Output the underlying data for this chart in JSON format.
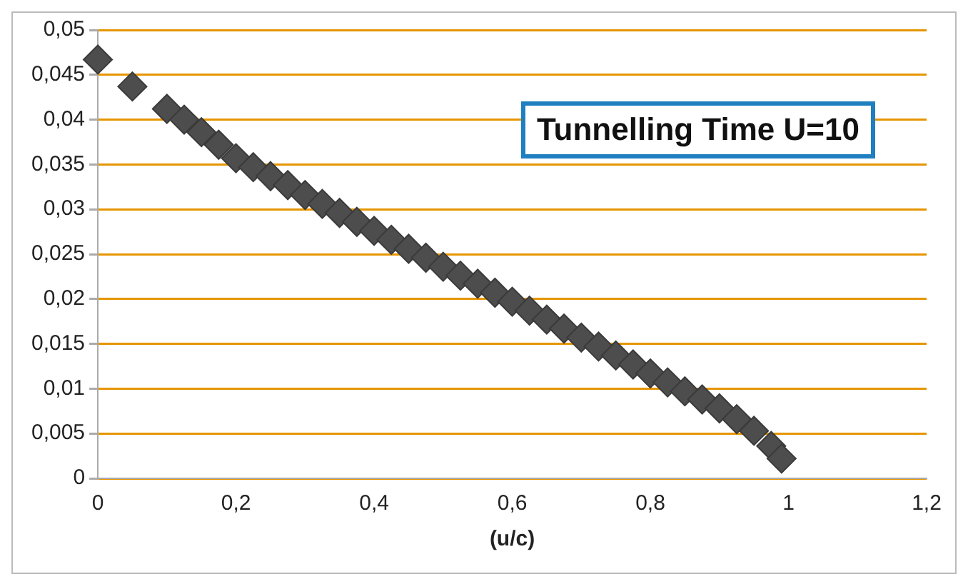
{
  "chart_data": {
    "type": "scatter",
    "title": "Tunnelling Time U=10",
    "xlabel": "(u/c)",
    "x": [
      0,
      0.05,
      0.1,
      0.125,
      0.15,
      0.175,
      0.2,
      0.225,
      0.25,
      0.275,
      0.3,
      0.325,
      0.35,
      0.375,
      0.4,
      0.425,
      0.45,
      0.475,
      0.5,
      0.525,
      0.55,
      0.575,
      0.6,
      0.625,
      0.65,
      0.675,
      0.7,
      0.725,
      0.75,
      0.775,
      0.8,
      0.825,
      0.85,
      0.875,
      0.9,
      0.925,
      0.95,
      0.975,
      0.99
    ],
    "series": [
      {
        "color": "#4d4d4d",
        "values": [
          0.0467,
          0.0437,
          0.0412,
          0.04,
          0.0386,
          0.0372,
          0.0357,
          0.0347,
          0.0337,
          0.0327,
          0.0316,
          0.0306,
          0.0296,
          0.0286,
          0.0276,
          0.0266,
          0.0256,
          0.0246,
          0.0236,
          0.0226,
          0.0217,
          0.0207,
          0.0197,
          0.0187,
          0.0177,
          0.0167,
          0.0157,
          0.0147,
          0.0137,
          0.0127,
          0.0117,
          0.0107,
          0.0097,
          0.0088,
          0.0078,
          0.0066,
          0.0053,
          0.0036,
          0.0022
        ]
      }
    ],
    "marker": "diamond",
    "grid": "y",
    "legend": false,
    "xlim": [
      0,
      1.2
    ],
    "xticks": [
      0,
      {
        "value": 0.2,
        "label": "0,2"
      },
      {
        "value": 0.4,
        "label": "0,4"
      },
      {
        "value": 0.6,
        "label": "0,6"
      },
      {
        "value": 0.8,
        "label": "0,8"
      },
      1,
      {
        "value": 1.2,
        "label": "1,2"
      }
    ],
    "ylim": [
      0,
      0.05
    ],
    "yticks": [
      0,
      {
        "value": 0.005,
        "label": "0,005"
      },
      {
        "value": 0.01,
        "label": "0,01"
      },
      {
        "value": 0.015,
        "label": "0,015"
      },
      {
        "value": 0.02,
        "label": "0,02"
      },
      {
        "value": 0.025,
        "label": "0,025"
      },
      {
        "value": 0.03,
        "label": "0,03"
      },
      {
        "value": 0.035,
        "label": "0,035"
      },
      {
        "value": 0.04,
        "label": "0,04"
      },
      {
        "value": 0.045,
        "label": "0,045"
      },
      {
        "value": 0.05,
        "label": "0,05"
      }
    ]
  }
}
